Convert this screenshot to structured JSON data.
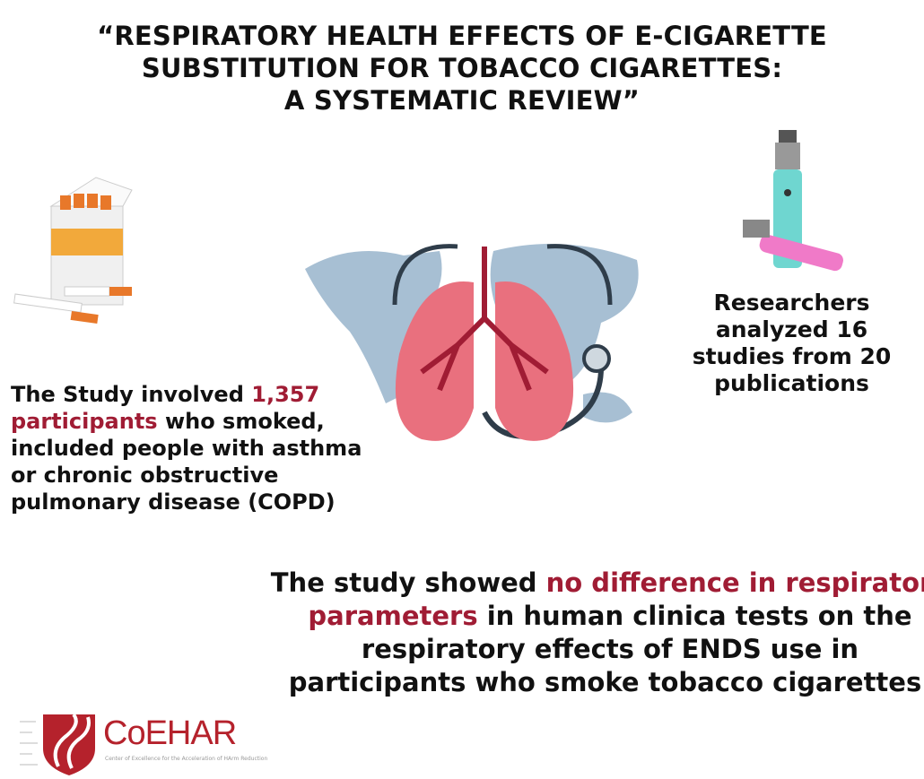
{
  "title": {
    "line1": "“RESPIRATORY HEALTH EFFECTS OF E-CIGARETTE",
    "line2": "SUBSTITUTION FOR TOBACCO CIGARETTES:",
    "line3": "A SYSTEMATIC REVIEW”"
  },
  "left": {
    "pre": "The Study involved ",
    "highlight": "1,357 participants",
    "post": " who smoked, included people with asthma or chronic obstructive pulmonary disease (COPD)"
  },
  "right": {
    "text": "Researchers analyzed 16 studies from 20 publications"
  },
  "bottom": {
    "pre": "The study showed ",
    "highlight": "no difference in respiratory parameters",
    "post": " in human clinica tests on the respiratory effects of ENDS use in participants who smoke tobacco cigarettes."
  },
  "logo": {
    "name": "CoEHAR",
    "tagline": "Center of Excellence for the Acceleration of HArm Reduction"
  },
  "colors": {
    "highlight": "#a01c34",
    "lungs": "#e9707e",
    "map": "#9db8cf",
    "logo": "#b5222c"
  },
  "icons": [
    "cigarette-pack",
    "e-cigarette",
    "world-map",
    "lungs",
    "stethoscope"
  ]
}
